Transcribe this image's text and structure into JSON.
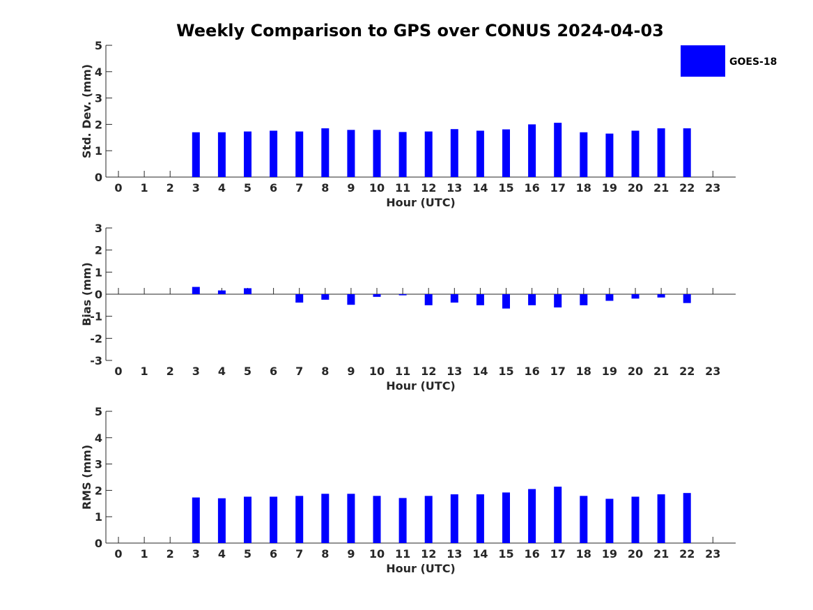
{
  "figure_title": "Weekly Comparison to GPS over CONUS 2024-04-03",
  "legend": {
    "label": "GOES-18",
    "color": "#0000FF"
  },
  "chart_data": [
    {
      "type": "bar",
      "title": "Weekly Comparison to GPS over CONUS 2024-04-03",
      "xlabel": "Hour (UTC)",
      "ylabel": "Std. Dev. (mm)",
      "ylim": [
        0,
        5
      ],
      "yticks": [
        "0",
        "1",
        "2",
        "3",
        "4",
        "5"
      ],
      "categories": [
        "0",
        "1",
        "2",
        "3",
        "4",
        "5",
        "6",
        "7",
        "8",
        "9",
        "10",
        "11",
        "12",
        "13",
        "14",
        "15",
        "16",
        "17",
        "18",
        "19",
        "20",
        "21",
        "22",
        "23"
      ],
      "series": [
        {
          "name": "GOES-18",
          "values": [
            null,
            null,
            null,
            1.7,
            1.7,
            1.73,
            1.76,
            1.73,
            1.85,
            1.79,
            1.79,
            1.71,
            1.73,
            1.82,
            1.76,
            1.81,
            2.0,
            2.06,
            1.7,
            1.65,
            1.76,
            1.85,
            1.85,
            null
          ]
        }
      ]
    },
    {
      "type": "bar",
      "xlabel": "Hour (UTC)",
      "ylabel": "Bias (mm)",
      "ylim": [
        -3,
        3
      ],
      "yticks": [
        "-3",
        "-2",
        "-1",
        "0",
        "1",
        "2",
        "3"
      ],
      "categories": [
        "0",
        "1",
        "2",
        "3",
        "4",
        "5",
        "6",
        "7",
        "8",
        "9",
        "10",
        "11",
        "12",
        "13",
        "14",
        "15",
        "16",
        "17",
        "18",
        "19",
        "20",
        "21",
        "22",
        "23"
      ],
      "series": [
        {
          "name": "GOES-18",
          "values": [
            null,
            null,
            null,
            0.33,
            0.17,
            0.27,
            0.0,
            -0.38,
            -0.25,
            -0.48,
            -0.12,
            -0.05,
            -0.5,
            -0.38,
            -0.5,
            -0.65,
            -0.5,
            -0.6,
            -0.5,
            -0.3,
            -0.2,
            -0.15,
            -0.4,
            null
          ]
        }
      ]
    },
    {
      "type": "bar",
      "xlabel": "Hour (UTC)",
      "ylabel": "RMS (mm)",
      "ylim": [
        0,
        5
      ],
      "yticks": [
        "0",
        "1",
        "2",
        "3",
        "4",
        "5"
      ],
      "categories": [
        "0",
        "1",
        "2",
        "3",
        "4",
        "5",
        "6",
        "7",
        "8",
        "9",
        "10",
        "11",
        "12",
        "13",
        "14",
        "15",
        "16",
        "17",
        "18",
        "19",
        "20",
        "21",
        "22",
        "23"
      ],
      "series": [
        {
          "name": "GOES-18",
          "values": [
            null,
            null,
            null,
            1.73,
            1.7,
            1.76,
            1.76,
            1.79,
            1.87,
            1.87,
            1.79,
            1.71,
            1.79,
            1.85,
            1.85,
            1.92,
            2.05,
            2.14,
            1.79,
            1.68,
            1.76,
            1.85,
            1.9,
            null
          ]
        }
      ]
    }
  ]
}
